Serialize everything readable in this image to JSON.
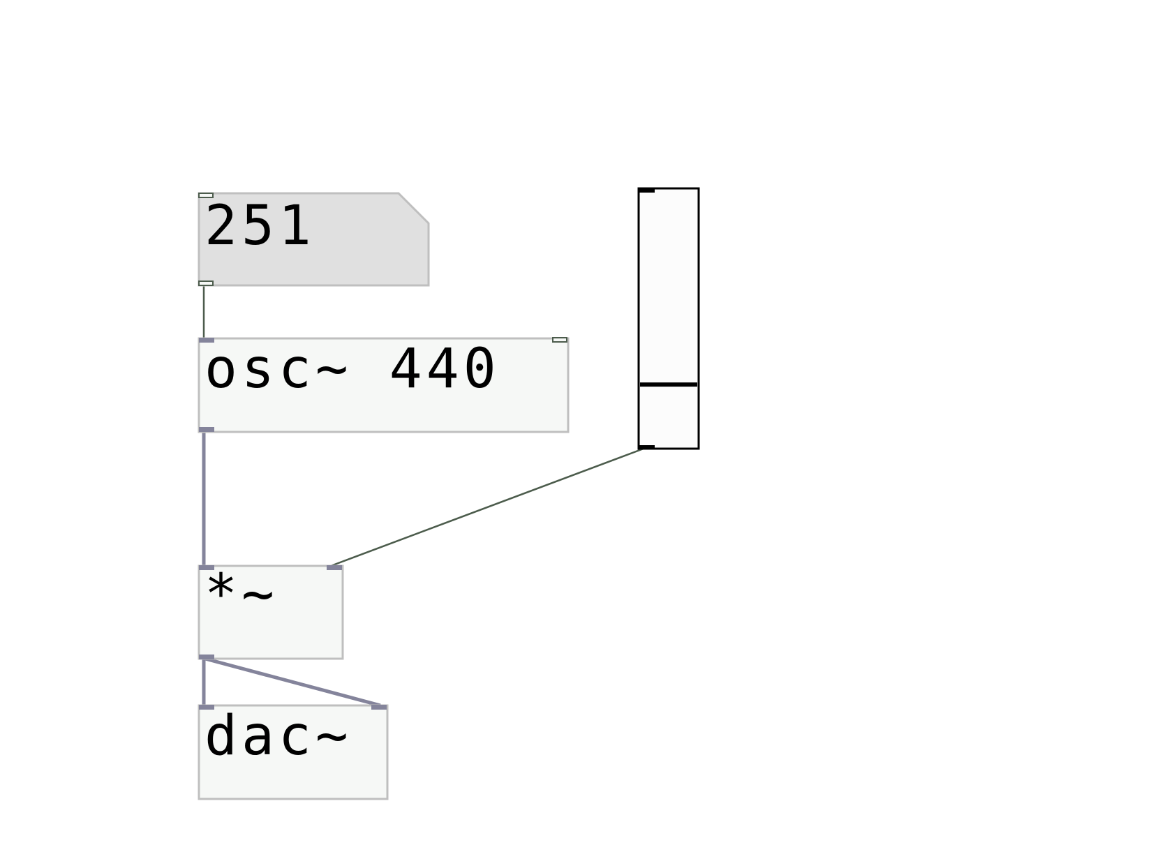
{
  "patch": {
    "number_box": {
      "value": "251"
    },
    "objects": {
      "osc": "osc~ 440",
      "multiply": "*~",
      "dac": "dac~"
    },
    "slider": {
      "orientation": "vertical",
      "level_fraction": 0.24
    }
  },
  "colors": {
    "background": "#ffffff",
    "number_box_fill": "#e0e0e0",
    "object_fill": "#f6f8f6",
    "object_border": "#bfbfbf",
    "signal_cord": "#84849b",
    "control_cord": "#4c5c4c",
    "slider_border": "#000000",
    "slider_fill": "#fcfcfc"
  }
}
